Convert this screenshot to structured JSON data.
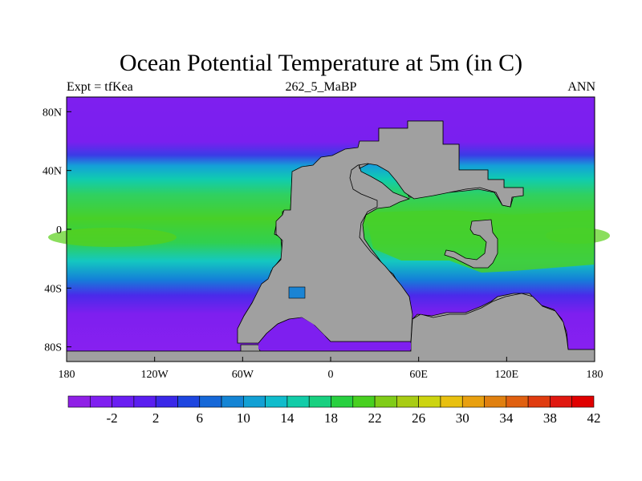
{
  "title": "Ocean Potential Temperature at 5m (in C)",
  "subtitle_left": "Expt = tfKea",
  "subtitle_center": "262_5_MaBP",
  "subtitle_right": "ANN",
  "lat_ticks": [
    {
      "value": 80,
      "label": "80N"
    },
    {
      "value": 40,
      "label": "40N"
    },
    {
      "value": 0,
      "label": "0"
    },
    {
      "value": -40,
      "label": "40S"
    },
    {
      "value": -80,
      "label": "80S"
    }
  ],
  "lon_ticks": [
    {
      "value": -180,
      "label": "180"
    },
    {
      "value": -120,
      "label": "120W"
    },
    {
      "value": -60,
      "label": "60W"
    },
    {
      "value": 0,
      "label": "0"
    },
    {
      "value": 60,
      "label": "60E"
    },
    {
      "value": 120,
      "label": "120E"
    },
    {
      "value": 180,
      "label": "180"
    }
  ],
  "colorbar": {
    "colors": [
      "#8f20e6",
      "#7f1ff0",
      "#6a1ef2",
      "#5a1ef0",
      "#3a28e8",
      "#1e46e0",
      "#1668d8",
      "#1484d4",
      "#12a0d4",
      "#10bccc",
      "#12cca8",
      "#18d080",
      "#28d040",
      "#48d020",
      "#80cc18",
      "#a8cc14",
      "#ccd410",
      "#e8c010",
      "#e8a010",
      "#e08010",
      "#e06010",
      "#e03c10",
      "#e01810",
      "#e00000"
    ],
    "labels": [
      "-2",
      "2",
      "6",
      "10",
      "14",
      "18",
      "22",
      "26",
      "30",
      "34",
      "38",
      "42"
    ]
  },
  "colors": {
    "land": "#a0a0a0",
    "cold": "#7e1fef",
    "warm": "#46d02a"
  }
}
